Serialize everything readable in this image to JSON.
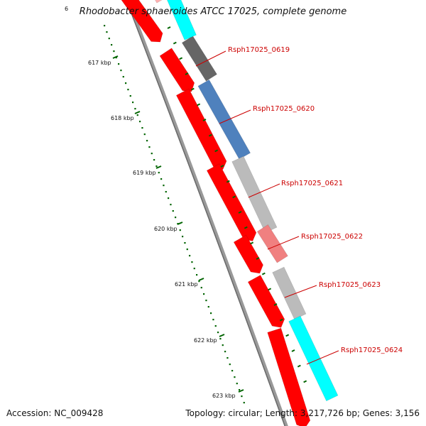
{
  "title": "Rhodobacter sphaeroides ATCC 17025, complete genome",
  "accession": "Accession: NC_009428",
  "summary": "Topology: circular; Length: 3,217,726 bp; Genes: 3,156",
  "kbp_ticks": [
    "617 kbp",
    "618 kbp",
    "619 kbp",
    "620 kbp",
    "621 kbp",
    "622 kbp",
    "623 kbp"
  ],
  "partial_tick": "6",
  "genes": [
    {
      "label": "Rsph17025_0619",
      "color": "#666666"
    },
    {
      "label": "Rsph17025_0620",
      "color": "#4f81bd"
    },
    {
      "label": "Rsph17025_0621",
      "color": "#bbbbbb"
    },
    {
      "label": "Rsph17025_0622",
      "color": "#f08080"
    },
    {
      "label": "Rsph17025_0623",
      "color": "#bbbbbb"
    },
    {
      "label": "Rsph17025_0624",
      "color": "#00ffff"
    }
  ],
  "colors": {
    "cds_strand": "#ff0000",
    "cyan_gene": "#00ffff",
    "backbone": "#808080",
    "tick_green": "#006400"
  }
}
